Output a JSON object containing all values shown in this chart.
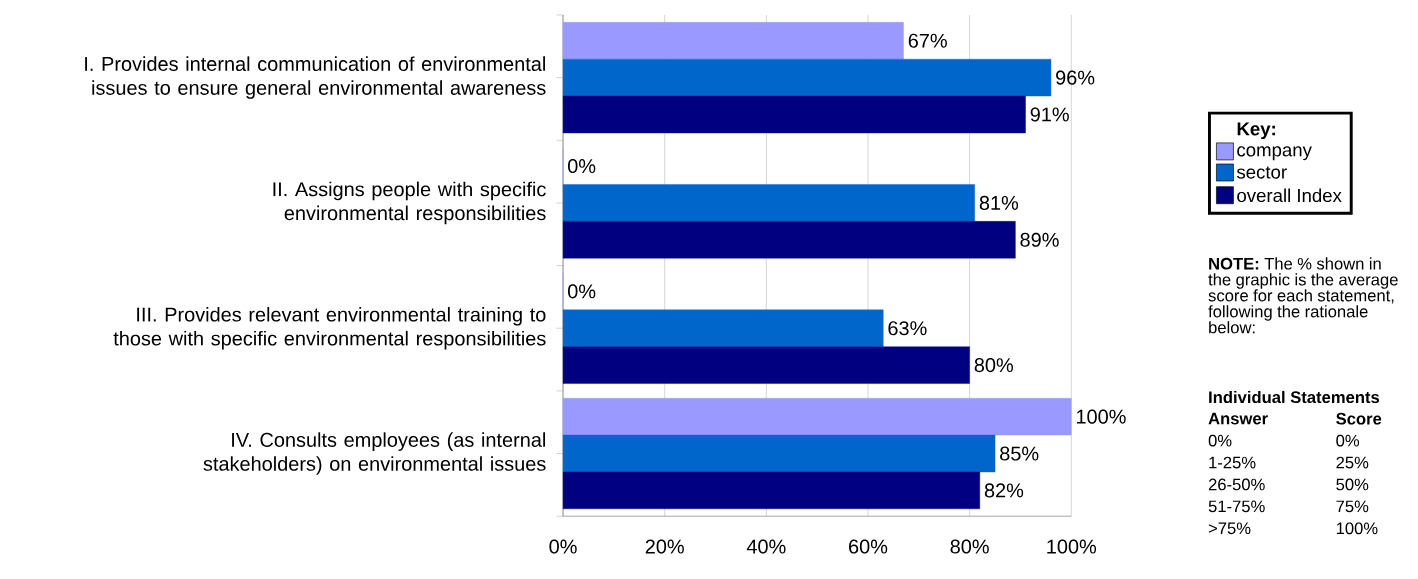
{
  "chart_data": {
    "type": "bar",
    "orientation": "horizontal",
    "categories": [
      "I. Provides internal communication of environmental issues to ensure general environmental awareness",
      "II. Assigns people with specific environmental responsibilities",
      "III. Provides relevant environmental training to those with specific environmental responsibilities",
      "IV. Consults employees (as internal stakeholders) on environmental issues"
    ],
    "series": [
      {
        "name": "company",
        "color": "#9999ff",
        "values": [
          67,
          0,
          0,
          100
        ],
        "value_labels": [
          "67%",
          "0%",
          "0%",
          "100%"
        ]
      },
      {
        "name": "sector",
        "color": "#0066cc",
        "values": [
          96,
          81,
          63,
          85
        ],
        "value_labels": [
          "96%",
          "81%",
          "63%",
          "85%"
        ]
      },
      {
        "name": "overall Index",
        "color": "#000080",
        "values": [
          91,
          89,
          80,
          82
        ],
        "value_labels": [
          "91%",
          "89%",
          "80%",
          "82%"
        ]
      }
    ],
    "xlim": [
      0,
      100
    ],
    "xticks": [
      {
        "value": 0,
        "label": "0%"
      },
      {
        "value": 20,
        "label": "20%"
      },
      {
        "value": 40,
        "label": "40%"
      },
      {
        "value": 60,
        "label": "60%"
      },
      {
        "value": 80,
        "label": "80%"
      },
      {
        "value": 100,
        "label": "100%"
      }
    ],
    "grid": "x",
    "legend": "right",
    "legend_title": "Key:",
    "annotations": [
      "**NOTE:** The % shown in the graphic is the average score for each statement, following the rationale below:",
      "Individual Statements",
      "Answer",
      "Score",
      "0%",
      "0%",
      "1-25%",
      "25%",
      "26-50%",
      "50%",
      "51-75%",
      "75%",
      ">75%",
      "100%"
    ]
  }
}
